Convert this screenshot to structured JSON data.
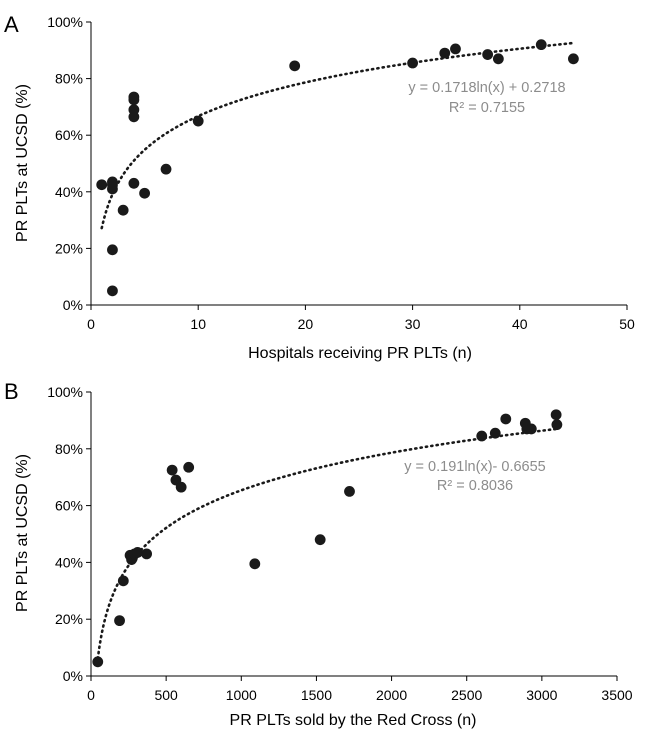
{
  "panels": [
    {
      "letter": "A",
      "xlabel": "Hospitals receiving PR PLTs (n)",
      "ylabel": "PR PLTs at UCSD (%)",
      "equation": "y = 0.1718ln(x) + 0.2718",
      "r2": "R² = 0.7155"
    },
    {
      "letter": "B",
      "xlabel": "PR PLTs sold by the Red Cross (n)",
      "ylabel": "PR PLTs at UCSD (%)",
      "equation": "y = 0.191ln(x)- 0.6655",
      "r2": "R² = 0.8036"
    }
  ],
  "chart_data": [
    {
      "type": "scatter",
      "xlabel": "Hospitals receiving PR PLTs (n)",
      "ylabel": "PR PLTs at UCSD (%)",
      "xlim": [
        0,
        50
      ],
      "ylim": [
        0,
        100
      ],
      "x_ticks": [
        "0",
        "10",
        "20",
        "30",
        "40",
        "50"
      ],
      "y_ticks": [
        "0%",
        "20%",
        "40%",
        "60%",
        "80%",
        "100%"
      ],
      "grid": false,
      "series": [
        {
          "x": [
            1,
            2,
            2,
            2,
            2,
            2,
            3,
            4,
            4,
            4,
            4,
            4,
            5,
            7,
            10,
            19,
            30,
            33,
            34,
            37,
            38,
            42,
            45
          ],
          "y": [
            42.5,
            5,
            19.5,
            41,
            42.5,
            43.5,
            33.5,
            43,
            66.5,
            69,
            72.5,
            73.5,
            39.5,
            48,
            65,
            84.5,
            85.5,
            89,
            90.5,
            88.5,
            87,
            92,
            87
          ],
          "marker_color": "#1a1a1a"
        }
      ],
      "trendline": {
        "kind": "logarithmic",
        "a": 0.1718,
        "b": 0.2718,
        "x_range": [
          1,
          45
        ],
        "equation": "y = 0.1718ln(x) + 0.2718",
        "r2": "R² = 0.7155",
        "label_color": "#8c8c8c"
      }
    },
    {
      "type": "scatter",
      "xlabel": "PR PLTs sold by the Red Cross (n)",
      "ylabel": "PR PLTs at UCSD (%)",
      "xlim": [
        0,
        3500
      ],
      "ylim": [
        0,
        100
      ],
      "x_ticks": [
        "0",
        "500",
        "1000",
        "1500",
        "2000",
        "2500",
        "3000",
        "3500"
      ],
      "y_ticks": [
        "0%",
        "20%",
        "40%",
        "60%",
        "80%",
        "100%"
      ],
      "grid": false,
      "series": [
        {
          "x": [
            45,
            190,
            215,
            260,
            270,
            275,
            290,
            310,
            370,
            540,
            565,
            600,
            650,
            1090,
            1525,
            1720,
            2600,
            2690,
            2760,
            2890,
            2900,
            2930,
            3095,
            3100
          ],
          "y": [
            5,
            19.5,
            33.5,
            42.5,
            41,
            41.5,
            43,
            43.5,
            43,
            72.5,
            69,
            66.5,
            73.5,
            39.5,
            48,
            65,
            84.5,
            85.5,
            90.5,
            89,
            87,
            87,
            92,
            88.5
          ],
          "marker_color": "#1a1a1a"
        }
      ],
      "trendline": {
        "kind": "logarithmic",
        "a": 0.191,
        "b": -0.6655,
        "x_range": [
          45,
          3100
        ],
        "equation": "y = 0.191ln(x)- 0.6655",
        "r2": "R² = 0.8036",
        "label_color": "#8c8c8c"
      }
    }
  ]
}
